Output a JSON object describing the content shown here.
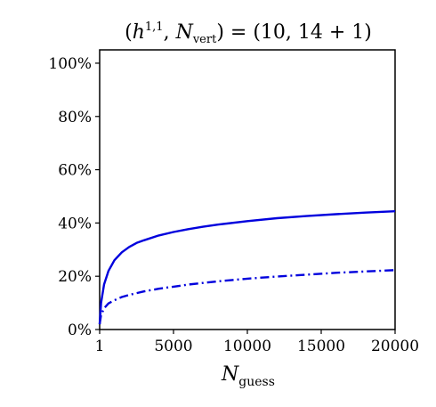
{
  "chart_data": {
    "type": "line",
    "title": "(h^{1,1}, N_vert) = (10, 14 + 1)",
    "title_parts": {
      "open": "(",
      "h": "h",
      "h_sup": "1,1",
      "comma": ", ",
      "n": "N",
      "n_sub": "vert",
      "close": ") = (10, 14 + 1)"
    },
    "xlabel": "N_guess",
    "xlabel_parts": {
      "main": "N",
      "sub": "guess"
    },
    "ylabel": "",
    "xlim": [
      1,
      20000
    ],
    "ylim": [
      0,
      105
    ],
    "x_ticks": [
      {
        "value": 1,
        "label": "1"
      },
      {
        "value": 5000,
        "label": "5000"
      },
      {
        "value": 10000,
        "label": "10000"
      },
      {
        "value": 15000,
        "label": "15000"
      },
      {
        "value": 20000,
        "label": "20000"
      }
    ],
    "y_ticks": [
      {
        "value": 0,
        "label": "0%"
      },
      {
        "value": 20,
        "label": "20%"
      },
      {
        "value": 40,
        "label": "40%"
      },
      {
        "value": 60,
        "label": "60%"
      },
      {
        "value": 80,
        "label": "80%"
      },
      {
        "value": 100,
        "label": "100%"
      }
    ],
    "grid": false,
    "legend": "none",
    "series": [
      {
        "style": "solid",
        "color": "#0000dd",
        "x": [
          1,
          100,
          300,
          600,
          1000,
          1500,
          2000,
          2500,
          3000,
          4000,
          5000,
          6000,
          7000,
          8000,
          10000,
          12000,
          14000,
          16000,
          18000,
          20000
        ],
        "y": [
          2,
          10,
          17,
          22,
          26,
          29,
          31,
          32.5,
          33.5,
          35.3,
          36.6,
          37.7,
          38.6,
          39.4,
          40.7,
          41.8,
          42.6,
          43.3,
          43.9,
          44.4
        ]
      },
      {
        "style": "dashdot",
        "color": "#0000dd",
        "x": [
          1,
          100,
          300,
          600,
          1000,
          1500,
          2000,
          3000,
          4000,
          5000,
          6000,
          7000,
          8000,
          10000,
          12000,
          14000,
          16000,
          18000,
          20000
        ],
        "y": [
          2,
          5.5,
          8,
          9.8,
          11,
          12.2,
          13,
          14.3,
          15.3,
          16.1,
          16.9,
          17.5,
          18.1,
          19.1,
          19.9,
          20.6,
          21.3,
          21.8,
          22.3
        ]
      }
    ]
  }
}
